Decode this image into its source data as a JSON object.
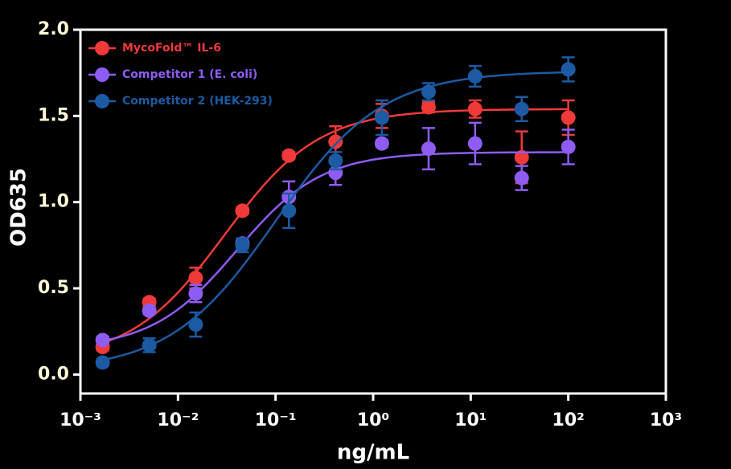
{
  "chart_data": {
    "type": "scatter",
    "x_label": "ng/mL",
    "y_label": "OD635",
    "x_scale": "log",
    "legend": "upper left",
    "xlim": [
      0.001,
      1000
    ],
    "xticks": [
      {
        "value": 0.001,
        "label": "10⁻³"
      },
      {
        "value": 0.01,
        "label": "10⁻²"
      },
      {
        "value": 0.1,
        "label": "10⁻¹"
      },
      {
        "value": 1,
        "label": "10⁰"
      },
      {
        "value": 10,
        "label": "10¹"
      },
      {
        "value": 100,
        "label": "10²"
      },
      {
        "value": 1000,
        "label": "10³"
      }
    ],
    "ylim": [
      -0.11,
      2.0
    ],
    "yticks": [
      {
        "value": 0,
        "label": "0.0"
      },
      {
        "value": 0.5,
        "label": "0.5"
      },
      {
        "value": 1,
        "label": "1.0"
      },
      {
        "value": 1.5,
        "label": "1.5"
      },
      {
        "value": 2,
        "label": "2.0"
      }
    ],
    "x": [
      0.00169,
      0.00508,
      0.0152,
      0.0457,
      0.137,
      0.412,
      1.23,
      3.7,
      11.1,
      33.3,
      100
    ],
    "series": [
      {
        "name": "MycoFold™ IL-6",
        "color": "#f03a3a",
        "values": [
          0.16,
          0.42,
          0.56,
          0.95,
          1.27,
          1.35,
          1.5,
          1.55,
          1.54,
          1.26,
          1.49
        ],
        "errors": [
          0.02,
          0.02,
          0.06,
          0.02,
          0.02,
          0.09,
          0.07,
          0.03,
          0.05,
          0.15,
          0.1
        ],
        "fit": {
          "bottom": 0.08,
          "top": 1.54,
          "ec50": 0.03,
          "hill": 0.9
        }
      },
      {
        "name": "Competitor 1 (E. coli)",
        "color": "#8e5cf2",
        "values": [
          0.2,
          0.37,
          0.47,
          0.76,
          1.03,
          1.17,
          1.34,
          1.31,
          1.34,
          1.14,
          1.32
        ],
        "errors": [
          0.02,
          0.02,
          0.05,
          0.03,
          0.09,
          0.07,
          0.02,
          0.12,
          0.12,
          0.07,
          0.1
        ],
        "fit": {
          "bottom": 0.15,
          "top": 1.29,
          "ec50": 0.04,
          "hill": 1.0
        }
      },
      {
        "name": "Competitor 2 (HEK-293)",
        "color": "#1c5aa3",
        "values": [
          0.07,
          0.17,
          0.29,
          0.75,
          0.95,
          1.24,
          1.49,
          1.64,
          1.73,
          1.54,
          1.77
        ],
        "errors": [
          0.02,
          0.04,
          0.07,
          0.04,
          0.1,
          0.05,
          0.1,
          0.05,
          0.06,
          0.07,
          0.07
        ],
        "fit": {
          "bottom": 0.02,
          "top": 1.76,
          "ec50": 0.1,
          "hill": 0.8
        }
      }
    ]
  }
}
